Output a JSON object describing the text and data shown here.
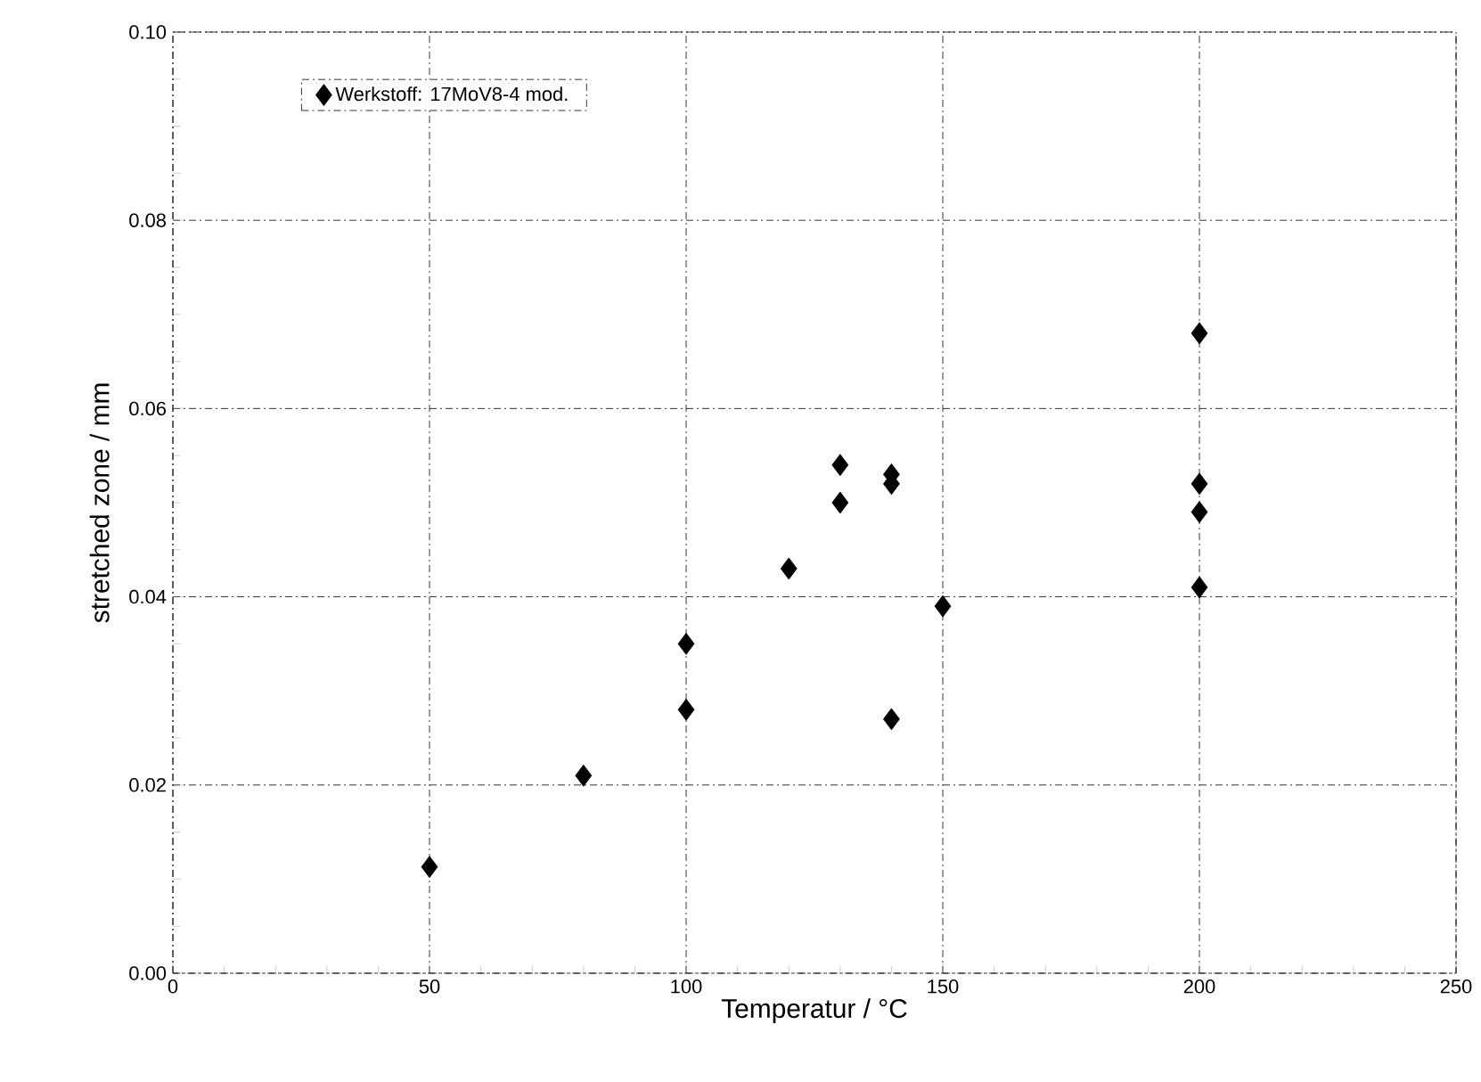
{
  "chart_data": {
    "type": "scatter",
    "xlabel": "Temperatur / °C",
    "ylabel": "stretched zone / mm",
    "x": [
      50,
      80,
      100,
      100,
      120,
      130,
      130,
      140,
      140,
      140,
      150,
      200,
      200,
      200,
      200
    ],
    "series": [
      {
        "name": "Werkstoff: 17MoV8-4 mod.",
        "color": "#000000",
        "values": [
          0.0113,
          0.021,
          0.035,
          0.028,
          0.043,
          0.054,
          0.05,
          0.053,
          0.052,
          0.027,
          0.039,
          0.068,
          0.052,
          0.049,
          0.041
        ]
      }
    ],
    "xlim": [
      0,
      250
    ],
    "ylim": [
      0,
      0.1
    ],
    "xticks": [
      0,
      50,
      100,
      150,
      200,
      250
    ],
    "yticks": [
      {
        "value": 0,
        "label": "0.00"
      },
      {
        "value": 0.02,
        "label": "0.02"
      },
      {
        "value": 0.04,
        "label": "0.04"
      },
      {
        "value": 0.06,
        "label": "0.06"
      },
      {
        "value": 0.08,
        "label": "0.08"
      },
      {
        "value": 0.1,
        "label": "0.10"
      }
    ],
    "grid": true,
    "legend": "top left",
    "marker": "diamond"
  }
}
